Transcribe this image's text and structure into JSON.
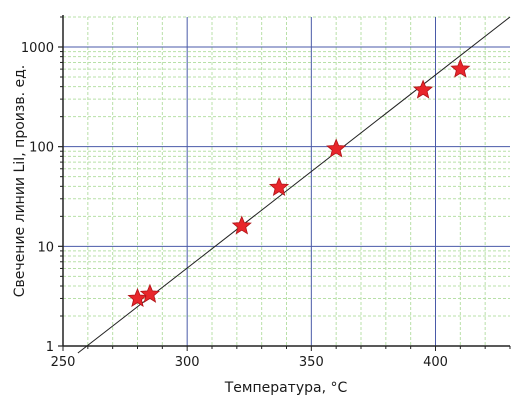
{
  "chart_data": {
    "type": "scatter",
    "xlabel": "Температура, °C",
    "ylabel": "Свечение линии LiI, произв. ед.",
    "xlim": [
      250,
      430
    ],
    "ylim": [
      1,
      2000
    ],
    "yscale": "log",
    "grid": true,
    "x_ticks": [
      "250",
      "300",
      "350",
      "400"
    ],
    "y_ticks": [
      "1",
      "10",
      "100",
      "1000"
    ],
    "series": [
      {
        "marker": "star",
        "color": "#e8262b",
        "x": [
          280,
          285,
          322,
          337,
          360,
          395,
          410
        ],
        "y": [
          3,
          3.3,
          16,
          39,
          95,
          370,
          600
        ]
      }
    ],
    "fit_line": {
      "color": "#222222",
      "x": [
        256,
        430
      ],
      "y": [
        0.85,
        2000
      ]
    },
    "colors": {
      "major_grid": "#4a5aa8",
      "minor_grid": "#b8e0a8"
    }
  }
}
